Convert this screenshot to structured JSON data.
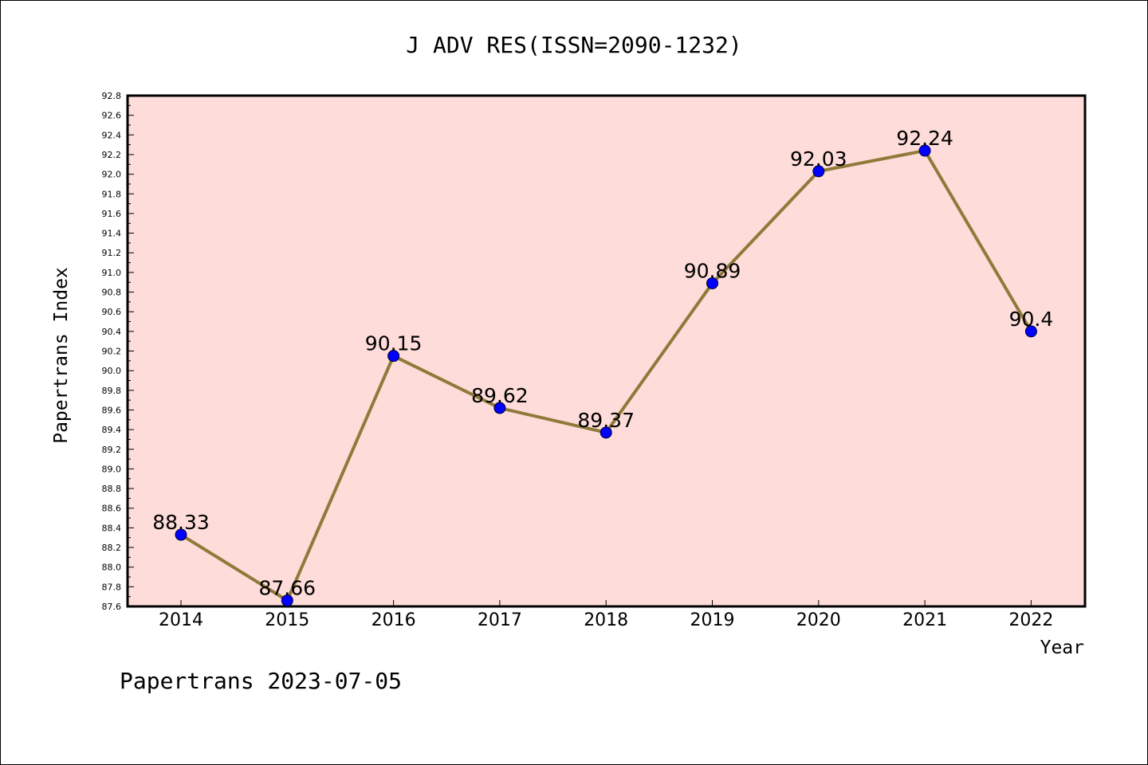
{
  "chart_data": {
    "type": "line",
    "title": "J ADV RES(ISSN=2090-1232)",
    "xlabel": "Year",
    "ylabel": "Papertrans Index",
    "categories": [
      "2014",
      "2015",
      "2016",
      "2017",
      "2018",
      "2019",
      "2020",
      "2021",
      "2022"
    ],
    "series": [
      {
        "values": [
          88.33,
          87.66,
          90.15,
          89.62,
          89.37,
          90.89,
          92.03,
          92.24,
          90.4
        ],
        "labels": [
          "88.33",
          "87.66",
          "90.15",
          "89.62",
          "89.37",
          "90.89",
          "92.03",
          "92.24",
          "90.4"
        ]
      }
    ],
    "ylim": [
      87.6,
      92.8
    ],
    "ytick_step": 0.2,
    "grid": false,
    "colors": {
      "plot_background": "#fddcd9",
      "line": "#8f7a3a",
      "marker": "#0000ff"
    }
  },
  "footer": "Papertrans 2023-07-05"
}
